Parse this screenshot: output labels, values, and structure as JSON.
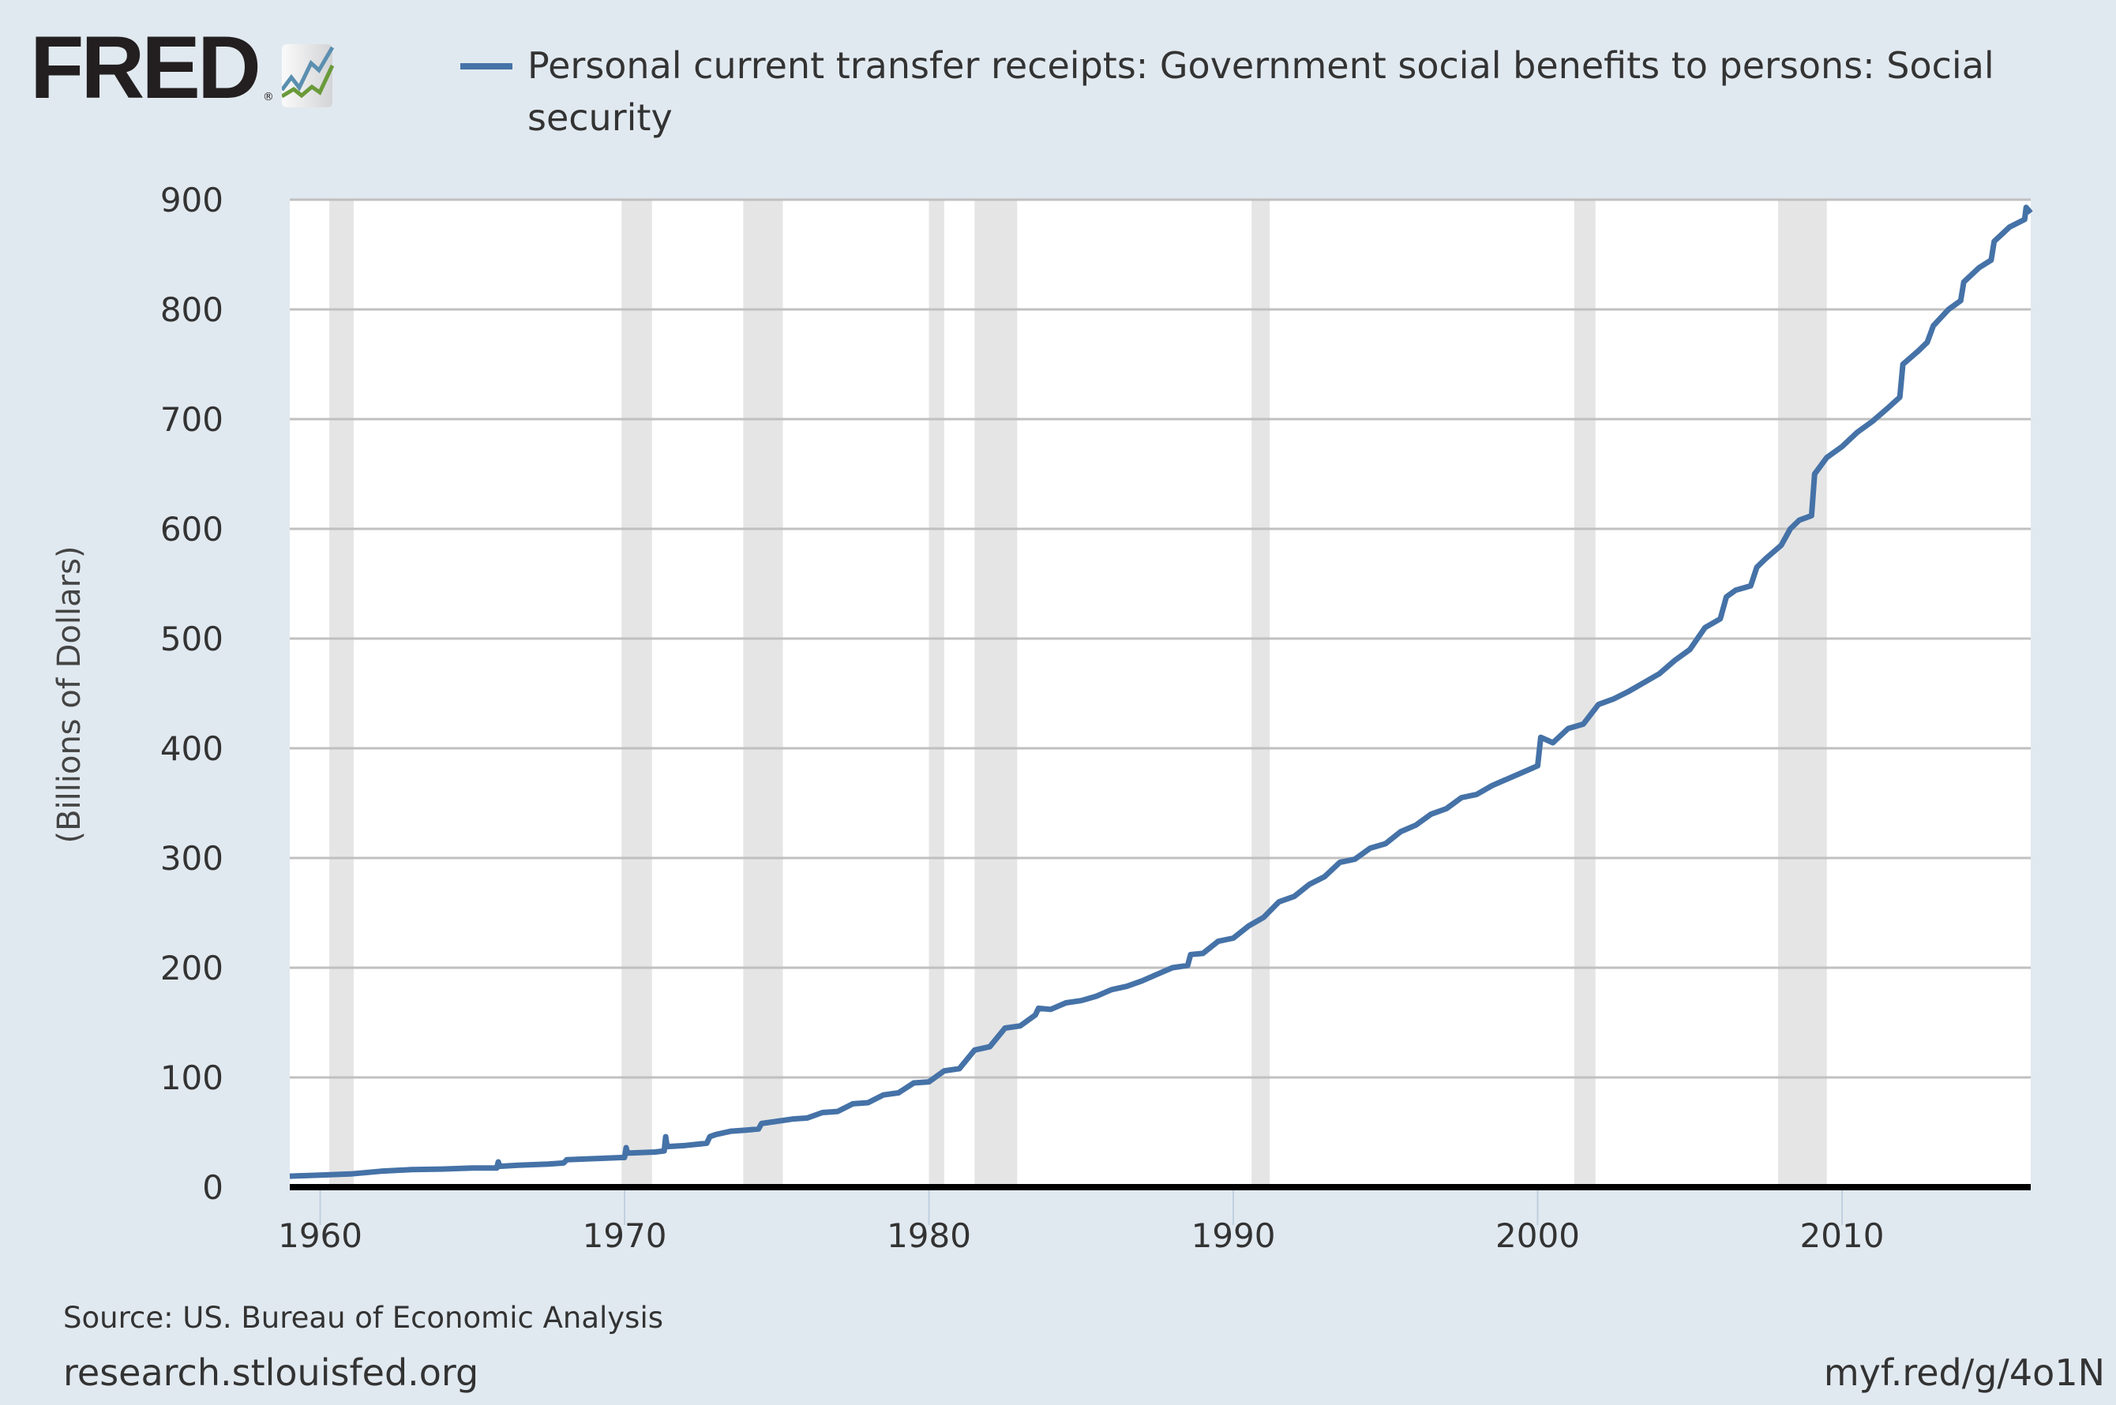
{
  "logo": {
    "text": "FRED",
    "mark": "®"
  },
  "colors": {
    "series": "#4572a7",
    "background": "#e1e9f0",
    "plot": "#ffffff",
    "recession": "#e5e5e5",
    "grid": "#c0c0c0",
    "logo_blue": "#5b8fb0",
    "logo_green": "#6a9a3a"
  },
  "footer": {
    "source": "Source: US. Bureau of Economic Analysis",
    "site": "research.stlouisfed.org",
    "short_url": "myf.red/g/4o1N"
  },
  "chart_data": {
    "type": "line",
    "title": "",
    "legend": {
      "placement": "top",
      "entries": [
        "Personal current transfer receipts: Government social benefits to persons: Social security"
      ]
    },
    "series": [
      {
        "name": "Personal current transfer receipts: Government social benefits to persons: Social security",
        "points": [
          [
            1959.0,
            10
          ],
          [
            1960.0,
            11
          ],
          [
            1961.0,
            12
          ],
          [
            1962.0,
            14.5
          ],
          [
            1963.0,
            16
          ],
          [
            1964.0,
            16.5
          ],
          [
            1965.0,
            17.5
          ],
          [
            1965.8,
            17.5
          ],
          [
            1965.85,
            23
          ],
          [
            1965.9,
            19
          ],
          [
            1966.5,
            20
          ],
          [
            1967.5,
            21
          ],
          [
            1968.0,
            22
          ],
          [
            1968.1,
            25
          ],
          [
            1969.0,
            26
          ],
          [
            1969.9,
            27
          ],
          [
            1970.0,
            27
          ],
          [
            1970.05,
            36
          ],
          [
            1970.1,
            31
          ],
          [
            1971.0,
            32
          ],
          [
            1971.3,
            33
          ],
          [
            1971.35,
            46
          ],
          [
            1971.4,
            37
          ],
          [
            1972.0,
            38
          ],
          [
            1972.7,
            40
          ],
          [
            1972.8,
            46
          ],
          [
            1973.0,
            48
          ],
          [
            1973.5,
            51
          ],
          [
            1974.0,
            52
          ],
          [
            1974.4,
            53
          ],
          [
            1974.5,
            58
          ],
          [
            1975.0,
            60
          ],
          [
            1975.5,
            62
          ],
          [
            1976.0,
            63
          ],
          [
            1976.5,
            68
          ],
          [
            1977.0,
            69
          ],
          [
            1977.5,
            76
          ],
          [
            1978.0,
            77
          ],
          [
            1978.5,
            84
          ],
          [
            1979.0,
            86
          ],
          [
            1979.5,
            95
          ],
          [
            1980.0,
            96
          ],
          [
            1980.5,
            106
          ],
          [
            1981.0,
            108
          ],
          [
            1981.5,
            125
          ],
          [
            1982.0,
            128
          ],
          [
            1982.5,
            145
          ],
          [
            1983.0,
            147
          ],
          [
            1983.5,
            157
          ],
          [
            1983.6,
            163
          ],
          [
            1984.0,
            162
          ],
          [
            1984.5,
            168
          ],
          [
            1985.0,
            170
          ],
          [
            1985.5,
            174
          ],
          [
            1986.0,
            180
          ],
          [
            1986.5,
            183
          ],
          [
            1987.0,
            188
          ],
          [
            1987.5,
            194
          ],
          [
            1988.0,
            200
          ],
          [
            1988.5,
            202
          ],
          [
            1988.6,
            212
          ],
          [
            1989.0,
            213
          ],
          [
            1989.5,
            224
          ],
          [
            1990.0,
            227
          ],
          [
            1990.5,
            238
          ],
          [
            1991.0,
            246
          ],
          [
            1991.5,
            260
          ],
          [
            1992.0,
            265
          ],
          [
            1992.5,
            276
          ],
          [
            1993.0,
            283
          ],
          [
            1993.5,
            296
          ],
          [
            1994.0,
            299
          ],
          [
            1994.5,
            309
          ],
          [
            1995.0,
            313
          ],
          [
            1995.5,
            324
          ],
          [
            1996.0,
            330
          ],
          [
            1996.5,
            340
          ],
          [
            1997.0,
            345
          ],
          [
            1997.5,
            355
          ],
          [
            1998.0,
            358
          ],
          [
            1998.5,
            366
          ],
          [
            1999.0,
            372
          ],
          [
            1999.5,
            378
          ],
          [
            2000.0,
            384
          ],
          [
            2000.1,
            410
          ],
          [
            2000.5,
            405
          ],
          [
            2001.0,
            418
          ],
          [
            2001.5,
            422
          ],
          [
            2002.0,
            440
          ],
          [
            2002.5,
            445
          ],
          [
            2003.0,
            452
          ],
          [
            2003.5,
            460
          ],
          [
            2004.0,
            468
          ],
          [
            2004.5,
            480
          ],
          [
            2005.0,
            490
          ],
          [
            2005.5,
            510
          ],
          [
            2006.0,
            518
          ],
          [
            2006.2,
            538
          ],
          [
            2006.5,
            544
          ],
          [
            2007.0,
            548
          ],
          [
            2007.2,
            565
          ],
          [
            2007.5,
            573
          ],
          [
            2008.0,
            585
          ],
          [
            2008.3,
            600
          ],
          [
            2008.6,
            608
          ],
          [
            2009.0,
            612
          ],
          [
            2009.1,
            650
          ],
          [
            2009.5,
            665
          ],
          [
            2010.0,
            675
          ],
          [
            2010.5,
            688
          ],
          [
            2011.0,
            698
          ],
          [
            2011.5,
            710
          ],
          [
            2011.9,
            720
          ],
          [
            2012.0,
            750
          ],
          [
            2012.5,
            762
          ],
          [
            2012.8,
            770
          ],
          [
            2013.0,
            785
          ],
          [
            2013.5,
            800
          ],
          [
            2013.9,
            808
          ],
          [
            2014.0,
            825
          ],
          [
            2014.5,
            838
          ],
          [
            2014.9,
            845
          ],
          [
            2015.0,
            862
          ],
          [
            2015.5,
            875
          ],
          [
            2016.0,
            882
          ],
          [
            2016.05,
            893
          ],
          [
            2016.2,
            888
          ]
        ]
      }
    ],
    "recessions": [
      [
        1960.3,
        1961.1
      ],
      [
        1969.9,
        1970.9
      ],
      [
        1973.9,
        1975.2
      ],
      [
        1980.0,
        1980.5
      ],
      [
        1981.5,
        1982.9
      ],
      [
        1990.6,
        1991.2
      ],
      [
        2001.2,
        2001.9
      ],
      [
        2007.9,
        2009.5
      ]
    ],
    "xlim": [
      1959.0,
      2016.2
    ],
    "ylim": [
      0,
      900
    ],
    "x_ticks": [
      "1960",
      "1970",
      "1980",
      "1990",
      "2000",
      "2010"
    ],
    "y_ticks": [
      "0",
      "100",
      "200",
      "300",
      "400",
      "500",
      "600",
      "700",
      "800",
      "900"
    ],
    "xlabel": "",
    "ylabel": "(Billions of Dollars)",
    "grid": "horizontal"
  }
}
